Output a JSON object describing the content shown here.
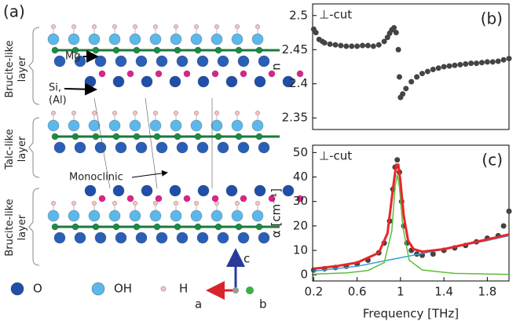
{
  "panel_a": {
    "label": "(a)",
    "layers": [
      {
        "lines": [
          "Brucite-like",
          "layer"
        ]
      },
      {
        "lines": [
          "Talc-like",
          "layer"
        ]
      },
      {
        "lines": [
          "Brucite-like",
          "layer"
        ]
      }
    ],
    "mg_label": "Mg",
    "si_label": [
      "Si,",
      "(Al)"
    ],
    "monoclinic": "Monoclinic",
    "legend": [
      {
        "name": "O",
        "color": "#1f4fa8"
      },
      {
        "name": "OH",
        "color": "#5cb8ea"
      },
      {
        "name": "H",
        "color": "#f2c8c8"
      }
    ],
    "axes": {
      "c": "c",
      "a": "a",
      "b": "b"
    }
  },
  "chart_data": [
    {
      "type": "scatter",
      "panel_label": "(b)",
      "annotation": "⊥-cut",
      "ylabel": "n",
      "color": "#444444",
      "xlim": [
        0.19,
        2.0
      ],
      "ylim": [
        2.333,
        2.517
      ],
      "yticks": [
        2.35,
        2.4,
        2.45,
        2.5
      ],
      "x": [
        0.2,
        0.22,
        0.25,
        0.28,
        0.3,
        0.35,
        0.4,
        0.45,
        0.5,
        0.55,
        0.6,
        0.65,
        0.7,
        0.75,
        0.8,
        0.85,
        0.88,
        0.9,
        0.92,
        0.94,
        0.96,
        0.98,
        0.99,
        1.0,
        1.02,
        1.05,
        1.1,
        1.15,
        1.2,
        1.25,
        1.3,
        1.35,
        1.4,
        1.45,
        1.5,
        1.55,
        1.6,
        1.65,
        1.7,
        1.75,
        1.8,
        1.85,
        1.9,
        1.95,
        2.0
      ],
      "values": [
        2.48,
        2.475,
        2.465,
        2.462,
        2.46,
        2.458,
        2.457,
        2.456,
        2.455,
        2.455,
        2.455,
        2.456,
        2.456,
        2.455,
        2.457,
        2.462,
        2.468,
        2.474,
        2.479,
        2.482,
        2.475,
        2.45,
        2.41,
        2.38,
        2.385,
        2.393,
        2.403,
        2.41,
        2.415,
        2.418,
        2.421,
        2.423,
        2.425,
        2.426,
        2.427,
        2.428,
        2.429,
        2.43,
        2.43,
        2.431,
        2.432,
        2.432,
        2.433,
        2.435,
        2.437
      ]
    },
    {
      "type": "scatter",
      "panel_label": "(c)",
      "annotation": "⊥-cut",
      "xlabel": "Frequency [THz]",
      "ylabel": "α [cm⁻¹]",
      "xlim": [
        0.19,
        2.0
      ],
      "ylim": [
        -2.5,
        53
      ],
      "xticks": [
        0.2,
        0.6,
        1,
        1.4,
        1.8
      ],
      "yticks": [
        0,
        10,
        20,
        30,
        40,
        50
      ],
      "series": [
        {
          "mode": "markers",
          "color": "#444444",
          "x": [
            0.2,
            0.3,
            0.4,
            0.5,
            0.6,
            0.7,
            0.8,
            0.85,
            0.9,
            0.93,
            0.95,
            0.97,
            0.99,
            1.01,
            1.03,
            1.06,
            1.1,
            1.15,
            1.2,
            1.3,
            1.4,
            1.5,
            1.6,
            1.7,
            1.8,
            1.9,
            1.95,
            2.0
          ],
          "values": [
            2,
            2.5,
            3,
            3.5,
            4.5,
            6,
            9,
            13,
            22,
            35,
            44,
            47,
            42,
            30,
            20,
            13,
            10,
            8.5,
            8,
            8.5,
            10,
            11,
            12,
            13.5,
            15,
            16,
            20,
            26
          ]
        },
        {
          "mode": "line",
          "color": "#3aa0dc",
          "x": [
            0.2,
            0.6,
            1.0,
            1.4,
            1.8,
            2.0
          ],
          "values": [
            1.5,
            3.5,
            7,
            10.5,
            14,
            16
          ]
        },
        {
          "mode": "line",
          "color": "#5cbf3a",
          "x": [
            0.2,
            0.5,
            0.7,
            0.85,
            0.92,
            0.95,
            0.97,
            0.99,
            1.02,
            1.08,
            1.2,
            1.5,
            2.0
          ],
          "values": [
            0.3,
            0.8,
            1.8,
            5,
            18,
            36,
            41,
            36,
            20,
            6,
            2,
            0.6,
            0.2
          ]
        },
        {
          "mode": "line",
          "color": "#e8252a",
          "width": 3,
          "x": [
            0.2,
            0.4,
            0.6,
            0.8,
            0.88,
            0.93,
            0.96,
            0.98,
            1.0,
            1.03,
            1.07,
            1.12,
            1.2,
            1.4,
            1.6,
            1.8,
            2.0
          ],
          "values": [
            2.5,
            3.5,
            5,
            9,
            17,
            35,
            45,
            45,
            38,
            24,
            14,
            10.5,
            9.5,
            10.5,
            12.5,
            14.5,
            16.5
          ]
        }
      ]
    }
  ]
}
